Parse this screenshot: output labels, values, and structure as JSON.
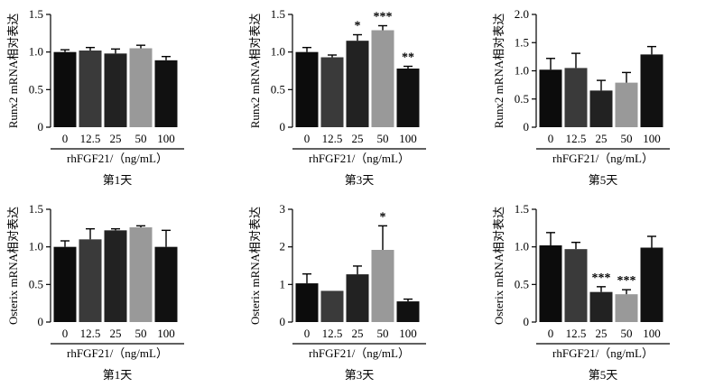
{
  "figure": {
    "xlabel": "rhFGF21/（ng/mL）",
    "categories": [
      "0",
      "12.5",
      "25",
      "50",
      "100"
    ],
    "bar_colors": [
      "#0c0c0c",
      "#3a3a3a",
      "#222222",
      "#999999",
      "#111111"
    ]
  },
  "chart_data": [
    {
      "type": "bar",
      "title": "第1天",
      "ylabel": "Runx2 mRNA相对表达",
      "xlabel": "rhFGF21/（ng/mL）",
      "categories": [
        "0",
        "12.5",
        "25",
        "50",
        "100"
      ],
      "values": [
        1.0,
        1.02,
        0.98,
        1.05,
        0.89
      ],
      "errors": [
        0.03,
        0.04,
        0.06,
        0.04,
        0.05
      ],
      "significance": [
        "",
        "",
        "",
        "",
        ""
      ],
      "ylim": [
        0,
        1.5
      ],
      "yticks": [
        0,
        0.5,
        1.0,
        1.5
      ],
      "ytick_labels": [
        "0",
        "0.5",
        "1.0",
        "1.5"
      ]
    },
    {
      "type": "bar",
      "title": "第3天",
      "ylabel": "Runx2 mRNA相对表达",
      "xlabel": "rhFGF21/（ng/mL）",
      "categories": [
        "0",
        "12.5",
        "25",
        "50",
        "100"
      ],
      "values": [
        1.0,
        0.93,
        1.15,
        1.29,
        0.78
      ],
      "errors": [
        0.06,
        0.03,
        0.08,
        0.06,
        0.03
      ],
      "significance": [
        "",
        "",
        "*",
        "***",
        "**"
      ],
      "ylim": [
        0,
        1.5
      ],
      "yticks": [
        0,
        0.5,
        1.0,
        1.5
      ],
      "ytick_labels": [
        "0",
        "0.5",
        "1.0",
        "1.5"
      ]
    },
    {
      "type": "bar",
      "title": "第5天",
      "ylabel": "Runx2 mRNA相对表达",
      "xlabel": "rhFGF21/（ng/mL）",
      "categories": [
        "0",
        "12.5",
        "25",
        "50",
        "100"
      ],
      "values": [
        1.02,
        1.05,
        0.65,
        0.79,
        1.29
      ],
      "errors": [
        0.2,
        0.26,
        0.18,
        0.18,
        0.14
      ],
      "significance": [
        "",
        "",
        "",
        "",
        ""
      ],
      "ylim": [
        0,
        2.0
      ],
      "yticks": [
        0,
        0.5,
        1.0,
        1.5,
        2.0
      ],
      "ytick_labels": [
        "0",
        "0.5",
        "1.0",
        "1.5",
        "2.0"
      ]
    },
    {
      "type": "bar",
      "title": "第1天",
      "ylabel": "Osterix mRNA相对表达",
      "xlabel": "rhFGF21/（ng/mL）",
      "categories": [
        "0",
        "12.5",
        "25",
        "50",
        "100"
      ],
      "values": [
        1.0,
        1.1,
        1.22,
        1.26,
        1.0
      ],
      "errors": [
        0.08,
        0.14,
        0.02,
        0.02,
        0.22
      ],
      "significance": [
        "",
        "",
        "",
        "",
        ""
      ],
      "ylim": [
        0,
        1.5
      ],
      "yticks": [
        0,
        0.5,
        1.0,
        1.5
      ],
      "ytick_labels": [
        "0",
        "0.5",
        "1.0",
        "1.5"
      ]
    },
    {
      "type": "bar",
      "title": "第3天",
      "ylabel": "Osterix mRNA相对表达",
      "xlabel": "rhFGF21/（ng/mL）",
      "categories": [
        "0",
        "12.5",
        "25",
        "50",
        "100"
      ],
      "values": [
        1.03,
        0.83,
        1.27,
        1.92,
        0.55
      ],
      "errors": [
        0.25,
        0.0,
        0.22,
        0.64,
        0.06
      ],
      "significance": [
        "",
        "",
        "",
        "*",
        ""
      ],
      "ylim": [
        0,
        3
      ],
      "yticks": [
        0,
        1,
        2,
        3
      ],
      "ytick_labels": [
        "0",
        "1",
        "2",
        "3"
      ]
    },
    {
      "type": "bar",
      "title": "第5天",
      "ylabel": "Osterix mRNA相对表达",
      "xlabel": "rhFGF21/（ng/mL）",
      "categories": [
        "0",
        "12.5",
        "25",
        "50",
        "100"
      ],
      "values": [
        1.02,
        0.97,
        0.4,
        0.37,
        0.99
      ],
      "errors": [
        0.17,
        0.09,
        0.07,
        0.06,
        0.15
      ],
      "significance": [
        "",
        "",
        "***",
        "***",
        ""
      ],
      "ylim": [
        0,
        1.5
      ],
      "yticks": [
        0,
        0.5,
        1.0,
        1.5
      ],
      "ytick_labels": [
        "0",
        "0.5",
        "1.0",
        "1.5"
      ]
    }
  ]
}
